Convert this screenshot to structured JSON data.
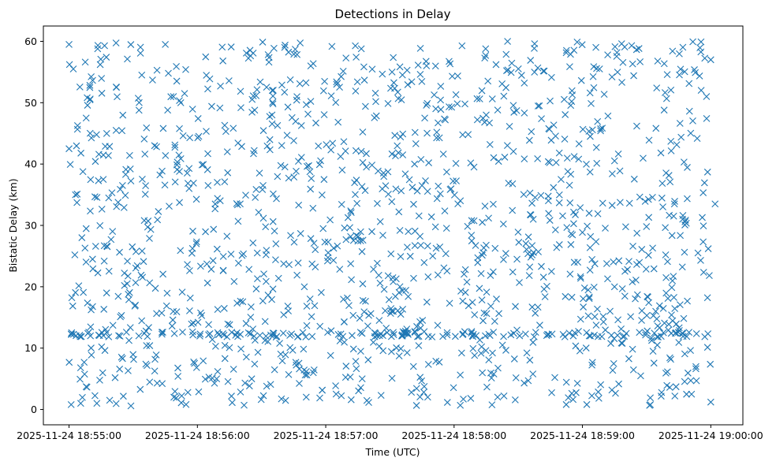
{
  "chart_data": {
    "type": "scatter",
    "title": "Detections in Delay",
    "xlabel": "Time (UTC)",
    "ylabel": "Bistatic Delay (km)",
    "marker": "x",
    "color": "#1f77b4",
    "grid": false,
    "xlim": [
      "2025-11-24 18:54:48",
      "2025-11-24 19:00:15"
    ],
    "ylim": [
      -2.5,
      62.5
    ],
    "x_ticks": [
      "2025-11-24 18:55:00",
      "2025-11-24 18:56:00",
      "2025-11-24 18:57:00",
      "2025-11-24 18:58:00",
      "2025-11-24 18:59:00",
      "2025-11-24 19:00:00"
    ],
    "y_ticks": [
      0,
      10,
      20,
      30,
      40,
      50,
      60
    ],
    "approx_point_count": 1500,
    "x_range": [
      "2025-11-24 18:55:00",
      "2025-11-24 19:00:00"
    ],
    "y_range": [
      0.5,
      60
    ],
    "note": "Detections appear roughly uniformly distributed over the time and delay ranges, with a denser horizontal band near 12 km.",
    "series": [
      {
        "x": [
          "2025-11-24 18:55:00",
          "2025-11-24 18:55:00",
          "2025-11-24 18:55:01",
          "2025-11-24 18:55:02",
          "2025-11-24 18:55:03",
          "2025-11-24 18:55:05",
          "2025-11-24 18:55:06",
          "2025-11-24 18:55:08",
          "2025-11-24 18:55:10",
          "2025-11-24 18:55:11",
          "2025-11-24 18:55:13",
          "2025-11-24 18:55:16",
          "2025-11-24 18:55:19",
          "2025-11-24 18:55:22",
          "2025-11-24 18:55:25",
          "2025-11-24 18:55:25",
          "2025-11-24 18:55:31",
          "2025-11-24 18:55:34",
          "2025-11-24 18:55:40",
          "2025-11-24 18:55:45",
          "2025-11-24 18:55:49",
          "2025-11-24 18:55:54",
          "2025-11-24 18:56:05",
          "2025-11-24 18:56:09",
          "2025-11-24 18:56:14",
          "2025-11-24 18:56:20",
          "2025-11-24 18:56:28",
          "2025-11-24 18:56:35",
          "2025-11-24 18:56:44",
          "2025-11-24 18:56:50",
          "2025-11-24 18:56:53",
          "2025-11-24 18:57:08",
          "2025-11-24 18:57:19",
          "2025-11-24 18:57:25",
          "2025-11-24 18:57:31",
          "2025-11-24 18:57:36",
          "2025-11-24 18:57:41",
          "2025-11-24 18:57:45",
          "2025-11-24 18:57:50",
          "2025-11-24 18:58:04",
          "2025-11-24 18:58:15",
          "2025-11-24 18:58:25",
          "2025-11-24 18:58:37",
          "2025-11-24 18:58:50",
          "2025-11-24 18:59:01",
          "2025-11-24 18:59:08",
          "2025-11-24 18:59:15",
          "2025-11-24 18:59:23",
          "2025-11-24 18:59:35",
          "2025-11-24 18:59:43",
          "2025-11-24 18:59:51",
          "2025-11-24 18:59:54",
          "2025-11-24 18:59:58",
          "2025-11-24 19:00:00",
          "2025-11-24 19:00:02",
          "2025-11-24 19:00:00"
        ],
        "y": [
          59.5,
          42.5,
          12.3,
          55.5,
          35.0,
          12.1,
          28.0,
          47.5,
          12.0,
          24.5,
          1.0,
          37.5,
          1.5,
          45.5,
          8.3,
          36.5,
          17.0,
          54.5,
          43.0,
          59.5,
          2.0,
          51.5,
          36.5,
          5.0,
          42.0,
          33.5,
          25.5,
          52.0,
          12.3,
          20.0,
          56.0,
          11.9,
          39.5,
          14.5,
          55.0,
          41.5,
          7.0,
          36.5,
          25.0,
          12.2,
          48.0,
          60.0,
          31.0,
          37.5,
          19.8,
          55.5,
          20.0,
          59.3,
          10.5,
          33.5,
          2.5,
          25.5,
          51.0,
          57.0,
          33.5,
          1.2
        ]
      }
    ]
  }
}
